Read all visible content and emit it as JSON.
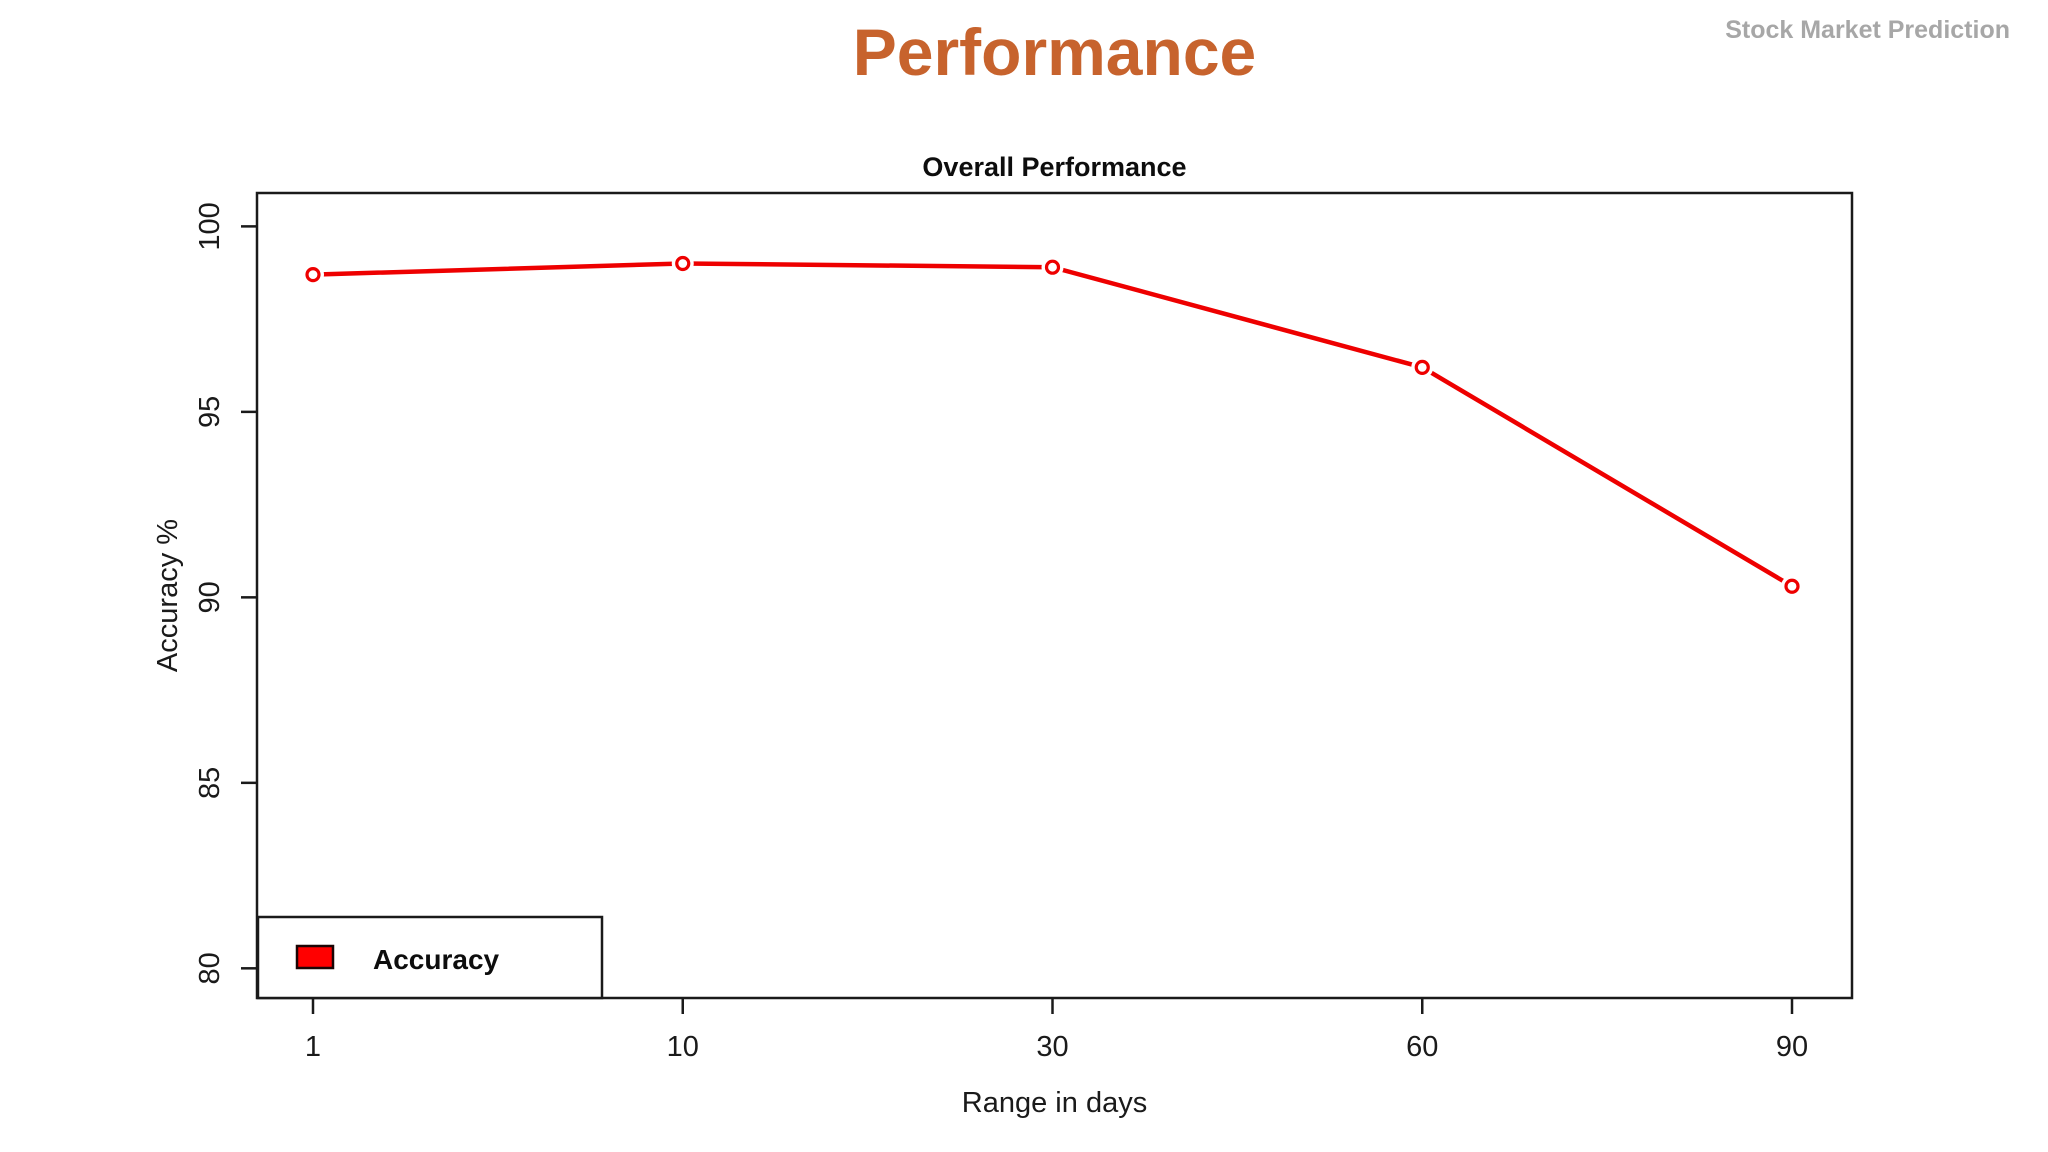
{
  "header": {
    "title": "Performance",
    "watermark": "Stock Market Prediction"
  },
  "chart_data": {
    "type": "line",
    "title": "Overall Performance",
    "xlabel": "Range in days",
    "ylabel": "Accuracy %",
    "categories": [
      "1",
      "10",
      "30",
      "60",
      "90"
    ],
    "series": [
      {
        "name": "Accuracy",
        "values": [
          98.7,
          99.0,
          98.9,
          96.2,
          90.3
        ]
      }
    ],
    "yticks": [
      80,
      85,
      90,
      95,
      100
    ],
    "ylim": [
      79.2,
      100.9
    ],
    "grid": false,
    "legend": {
      "position": "bottom-left",
      "entries": [
        {
          "label": "Accuracy",
          "swatch_color": "#ff0000"
        }
      ]
    },
    "colors": {
      "line": "#ee0000",
      "marker_fill": "#ffffff",
      "axis": "#1a1a1a",
      "title_accent": "#c7632d",
      "watermark": "#a7a7a7",
      "swatch_border": "#1a0505"
    }
  }
}
